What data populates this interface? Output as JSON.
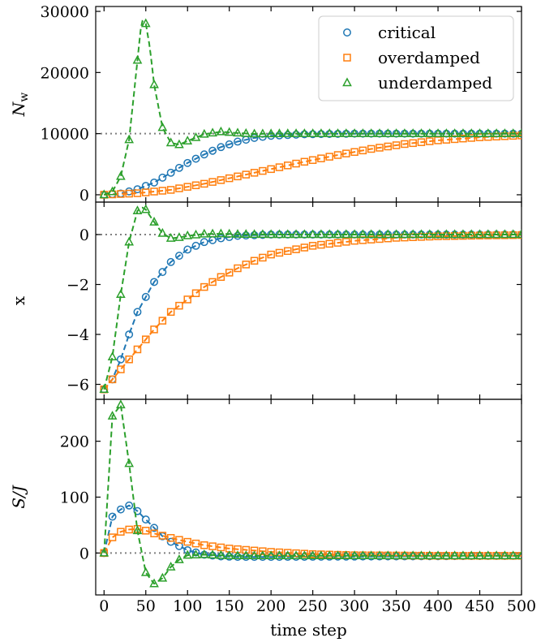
{
  "chart_data": {
    "type": "line",
    "xlabel": "time step",
    "xlim": [
      -10,
      500
    ],
    "xticks": [
      0,
      50,
      100,
      150,
      200,
      250,
      300,
      350,
      400,
      450,
      500
    ],
    "legend": {
      "placement": "top-right",
      "panel": 0
    },
    "colors": {
      "critical": "#1f77b4",
      "overdamped": "#ff7f0e",
      "underdamped": "#2ca02c",
      "reference": "#808080"
    },
    "series_meta": [
      {
        "key": "critical",
        "name": "critical",
        "marker": "circle"
      },
      {
        "key": "overdamped",
        "name": "overdamped",
        "marker": "square"
      },
      {
        "key": "underdamped",
        "name": "underdamped",
        "marker": "triangle"
      }
    ],
    "marker_step": 10,
    "panels": [
      {
        "ylabel": "N",
        "ylabel_sub": "w",
        "ylim": [
          -1200,
          30800
        ],
        "yticks": [
          0,
          10000,
          20000,
          30000
        ],
        "reference_line": 10000,
        "series": {
          "critical": [
            [
              0,
              0
            ],
            [
              20,
              200
            ],
            [
              40,
              900
            ],
            [
              60,
              2000
            ],
            [
              80,
              3600
            ],
            [
              100,
              5200
            ],
            [
              120,
              6600
            ],
            [
              140,
              7800
            ],
            [
              160,
              8700
            ],
            [
              180,
              9300
            ],
            [
              200,
              9650
            ],
            [
              240,
              9900
            ],
            [
              300,
              10000
            ],
            [
              500,
              10000
            ]
          ],
          "overdamped": [
            [
              0,
              0
            ],
            [
              40,
              250
            ],
            [
              80,
              800
            ],
            [
              120,
              1800
            ],
            [
              160,
              3000
            ],
            [
              200,
              4200
            ],
            [
              240,
              5400
            ],
            [
              280,
              6500
            ],
            [
              320,
              7500
            ],
            [
              360,
              8300
            ],
            [
              400,
              8900
            ],
            [
              450,
              9400
            ],
            [
              500,
              9700
            ]
          ],
          "underdamped": [
            [
              0,
              0
            ],
            [
              10,
              500
            ],
            [
              20,
              3000
            ],
            [
              30,
              9000
            ],
            [
              40,
              22000
            ],
            [
              45,
              28500
            ],
            [
              50,
              28000
            ],
            [
              55,
              24000
            ],
            [
              60,
              18000
            ],
            [
              70,
              11000
            ],
            [
              80,
              8500
            ],
            [
              90,
              8200
            ],
            [
              100,
              8800
            ],
            [
              120,
              9900
            ],
            [
              140,
              10300
            ],
            [
              160,
              10100
            ],
            [
              180,
              9950
            ],
            [
              220,
              10000
            ],
            [
              500,
              10000
            ]
          ]
        }
      },
      {
        "ylabel": "x",
        "ylim": [
          -6.6,
          1.3
        ],
        "yticks": [
          -6,
          -4,
          -2,
          0
        ],
        "reference_line": 0,
        "series": {
          "critical": [
            [
              0,
              -6.2
            ],
            [
              10,
              -5.8
            ],
            [
              20,
              -5.0
            ],
            [
              30,
              -4.0
            ],
            [
              40,
              -3.1
            ],
            [
              50,
              -2.5
            ],
            [
              60,
              -1.9
            ],
            [
              80,
              -1.1
            ],
            [
              100,
              -0.6
            ],
            [
              120,
              -0.3
            ],
            [
              140,
              -0.15
            ],
            [
              160,
              -0.05
            ],
            [
              200,
              0
            ],
            [
              500,
              0
            ]
          ],
          "overdamped": [
            [
              0,
              -6.2
            ],
            [
              20,
              -5.4
            ],
            [
              40,
              -4.6
            ],
            [
              60,
              -3.8
            ],
            [
              80,
              -3.1
            ],
            [
              100,
              -2.6
            ],
            [
              120,
              -2.1
            ],
            [
              140,
              -1.7
            ],
            [
              160,
              -1.35
            ],
            [
              180,
              -1.05
            ],
            [
              200,
              -0.8
            ],
            [
              250,
              -0.45
            ],
            [
              300,
              -0.25
            ],
            [
              350,
              -0.13
            ],
            [
              400,
              -0.07
            ],
            [
              450,
              -0.04
            ],
            [
              500,
              -0.02
            ]
          ],
          "underdamped": [
            [
              0,
              -6.2
            ],
            [
              10,
              -4.9
            ],
            [
              20,
              -2.4
            ],
            [
              30,
              -0.3
            ],
            [
              40,
              0.95
            ],
            [
              45,
              1.1
            ],
            [
              50,
              1.0
            ],
            [
              60,
              0.5
            ],
            [
              70,
              0.05
            ],
            [
              80,
              -0.15
            ],
            [
              90,
              -0.12
            ],
            [
              100,
              -0.05
            ],
            [
              120,
              0.02
            ],
            [
              140,
              0.03
            ],
            [
              160,
              0.01
            ],
            [
              200,
              0
            ],
            [
              500,
              0
            ]
          ]
        }
      },
      {
        "ylabel": "S/J",
        "ylim": [
          -75,
          275
        ],
        "yticks": [
          0,
          100,
          200
        ],
        "reference_line": 0,
        "series": {
          "critical": [
            [
              0,
              0
            ],
            [
              10,
              65
            ],
            [
              20,
              78
            ],
            [
              30,
              85
            ],
            [
              40,
              75
            ],
            [
              50,
              60
            ],
            [
              60,
              45
            ],
            [
              70,
              30
            ],
            [
              80,
              20
            ],
            [
              100,
              5
            ],
            [
              120,
              -3
            ],
            [
              140,
              -6
            ],
            [
              160,
              -7
            ],
            [
              200,
              -7
            ],
            [
              500,
              -5
            ]
          ],
          "overdamped": [
            [
              0,
              0
            ],
            [
              10,
              28
            ],
            [
              20,
              38
            ],
            [
              30,
              42
            ],
            [
              40,
              43
            ],
            [
              50,
              40
            ],
            [
              60,
              35
            ],
            [
              80,
              27
            ],
            [
              100,
              20
            ],
            [
              120,
              14
            ],
            [
              150,
              8
            ],
            [
              200,
              2
            ],
            [
              250,
              -2
            ],
            [
              300,
              -4
            ],
            [
              400,
              -5
            ],
            [
              500,
              -5
            ]
          ],
          "underdamped": [
            [
              0,
              0
            ],
            [
              5,
              120
            ],
            [
              10,
              245
            ],
            [
              20,
              265
            ],
            [
              30,
              160
            ],
            [
              40,
              40
            ],
            [
              50,
              -35
            ],
            [
              60,
              -55
            ],
            [
              70,
              -45
            ],
            [
              80,
              -25
            ],
            [
              90,
              -12
            ],
            [
              100,
              -4
            ],
            [
              120,
              -3
            ],
            [
              150,
              -5
            ],
            [
              200,
              -5
            ],
            [
              500,
              -5
            ]
          ]
        }
      }
    ]
  }
}
